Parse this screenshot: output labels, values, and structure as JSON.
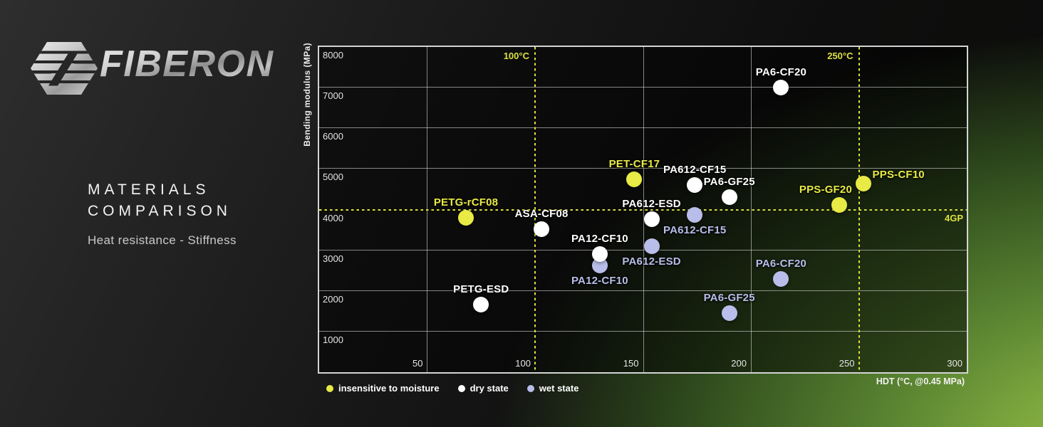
{
  "logo": {
    "text": "FIBERON",
    "icon": "fiberon-hexagon-logo"
  },
  "heading": {
    "line1": "MATERIALS",
    "line2": "COMPARISON",
    "subtitle": "Heat resistance - Stiffness"
  },
  "colors": {
    "yellow": "#e8ea45",
    "white": "#ffffff",
    "lavender": "#b8bee9",
    "dashed_reference": "#dde041",
    "background_green": "#8db53e",
    "background_dark": "#161616"
  },
  "chart_data": {
    "type": "scatter",
    "xlabel": "HDT (°C, @0.45 MPa)",
    "ylabel": "Bending modulus (MPa)",
    "xlim": [
      0,
      300
    ],
    "ylim": [
      0,
      8000
    ],
    "x_ticks": [
      50,
      100,
      150,
      200,
      250,
      300
    ],
    "y_ticks": [
      8000,
      7000,
      6000,
      5000,
      4000,
      3000,
      2000,
      1000
    ],
    "x_gridlines_solid": [
      50,
      150,
      200
    ],
    "y_gridlines_solid": [
      1000,
      2000,
      3000,
      5000,
      6000,
      7000
    ],
    "grid": true,
    "legend_position": "bottom-left",
    "reference_lines": [
      {
        "axis": "x",
        "value": 100,
        "label": "100°C"
      },
      {
        "axis": "x",
        "value": 250,
        "label": "250°C"
      },
      {
        "axis": "y",
        "value": 4000,
        "label": "4GP"
      }
    ],
    "series": [
      {
        "key": "insensitive",
        "name": "insensitive to moisture",
        "color": "#e8ea45",
        "points": [
          {
            "label": "PETG-rCF08",
            "x": 68,
            "y": 3800,
            "label_pos": "above"
          },
          {
            "label": "PET-CF17",
            "x": 146,
            "y": 4750,
            "label_pos": "above"
          },
          {
            "label": "PPS-GF20",
            "x": 241,
            "y": 4120,
            "label_pos": "above-left"
          },
          {
            "label": "PPS-CF10",
            "x": 252,
            "y": 4640,
            "label_pos": "right-up"
          }
        ]
      },
      {
        "key": "dry",
        "name": "dry state",
        "color": "#ffffff",
        "points": [
          {
            "label": "PA6-CF20",
            "x": 214,
            "y": 7000,
            "label_pos": "above"
          },
          {
            "label": "PA612-CF15",
            "x": 174,
            "y": 4600,
            "label_pos": "above"
          },
          {
            "label": "PA6-GF25",
            "x": 190,
            "y": 4300,
            "label_pos": "above"
          },
          {
            "label": "PA612-ESD",
            "x": 154,
            "y": 3770,
            "label_pos": "above"
          },
          {
            "label": "ASA-CF08",
            "x": 103,
            "y": 3520,
            "label_pos": "above"
          },
          {
            "label": "PA12-CF10",
            "x": 130,
            "y": 2910,
            "label_pos": "above"
          },
          {
            "label": "PETG-ESD",
            "x": 75,
            "y": 1670,
            "label_pos": "above"
          }
        ]
      },
      {
        "key": "wet",
        "name": "wet state",
        "color": "#b8bee9",
        "points": [
          {
            "label": "PA612-CF15",
            "x": 174,
            "y": 3870,
            "label_pos": "below"
          },
          {
            "label": "PA612-ESD",
            "x": 154,
            "y": 3090,
            "label_pos": "below"
          },
          {
            "label": "PA12-CF10",
            "x": 130,
            "y": 2620,
            "label_pos": "below"
          },
          {
            "label": "PA6-CF20",
            "x": 214,
            "y": 2290,
            "label_pos": "above"
          },
          {
            "label": "PA6-GF25",
            "x": 190,
            "y": 1460,
            "label_pos": "above"
          }
        ]
      }
    ]
  }
}
